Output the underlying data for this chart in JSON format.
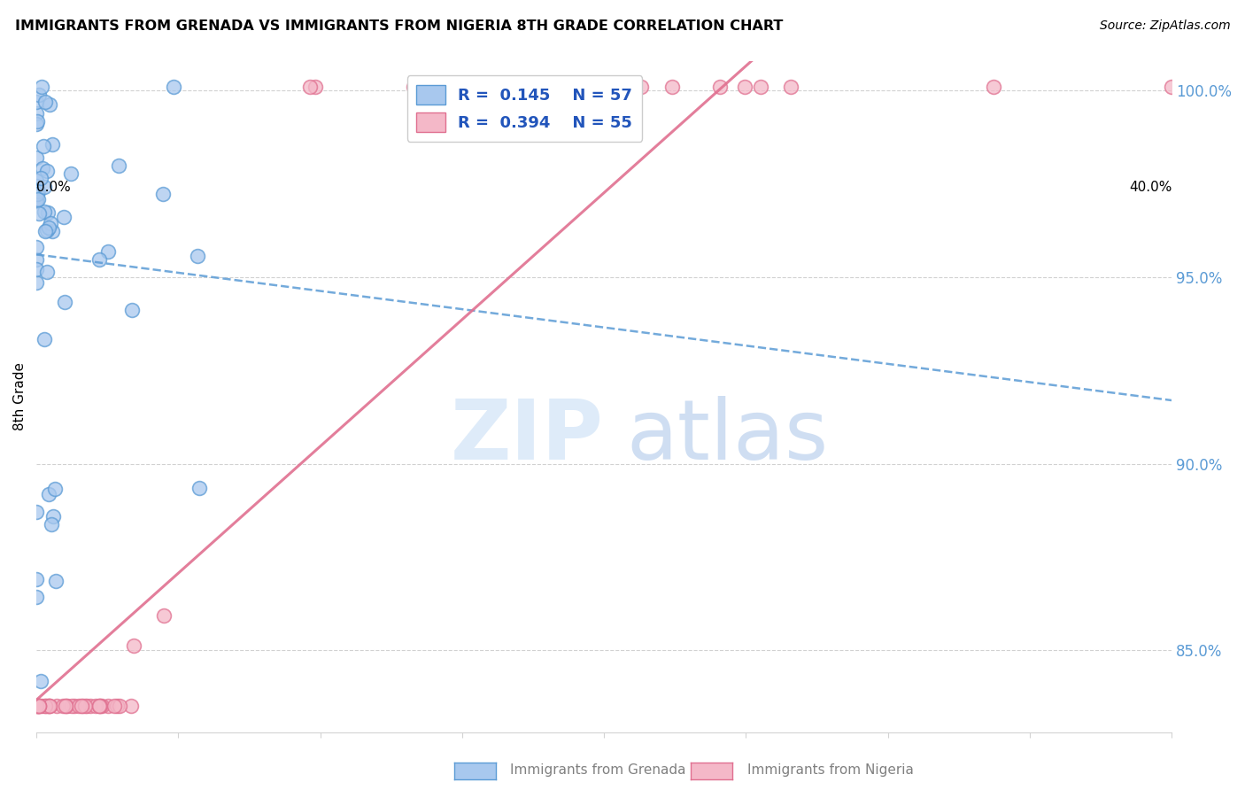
{
  "title": "IMMIGRANTS FROM GRENADA VS IMMIGRANTS FROM NIGERIA 8TH GRADE CORRELATION CHART",
  "source": "Source: ZipAtlas.com",
  "ylabel": "8th Grade",
  "legend_grenada_R": "0.145",
  "legend_grenada_N": "57",
  "legend_nigeria_R": "0.394",
  "legend_nigeria_N": "55",
  "color_grenada_fill": "#A8C8EE",
  "color_grenada_edge": "#5B9BD5",
  "color_nigeria_fill": "#F4B8C8",
  "color_nigeria_edge": "#E07090",
  "color_grenada_line": "#5B9BD5",
  "color_nigeria_line": "#E07090",
  "color_right_axis": "#5B9BD5",
  "xlim": [
    0.0,
    0.4
  ],
  "ylim": [
    0.828,
    1.008
  ],
  "right_yticks": [
    1.0,
    0.95,
    0.9,
    0.85
  ],
  "right_yticklabels": [
    "100.0%",
    "95.0%",
    "90.0%",
    "85.0%"
  ],
  "background_color": "#ffffff",
  "grenada_seed": 10,
  "nigeria_seed": 20
}
